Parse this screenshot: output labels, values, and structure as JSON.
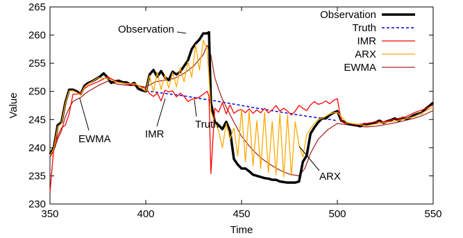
{
  "chart_data": {
    "type": "line",
    "xlabel": "Time",
    "ylabel": "Value",
    "xlim": [
      350,
      550
    ],
    "ylim": [
      230,
      265
    ],
    "xticks": [
      350,
      400,
      450,
      500,
      550
    ],
    "yticks": [
      230,
      235,
      240,
      245,
      250,
      255,
      260,
      265
    ],
    "grid": false,
    "legend_position": "top-right",
    "series": [
      {
        "name": "Observation",
        "color": "#000000",
        "style": "solid-thick",
        "x": [
          350,
          352,
          354,
          356,
          358,
          360,
          362,
          364,
          366,
          368,
          370,
          372,
          374,
          376,
          378,
          380,
          382,
          384,
          386,
          388,
          390,
          392,
          394,
          396,
          398,
          400,
          402,
          404,
          406,
          408,
          410,
          412,
          414,
          416,
          418,
          420,
          422,
          424,
          426,
          428,
          430,
          432,
          433,
          434,
          436,
          438,
          440,
          442,
          444,
          446,
          448,
          450,
          452,
          454,
          456,
          458,
          460,
          462,
          464,
          466,
          468,
          470,
          472,
          474,
          476,
          478,
          480,
          482,
          484,
          486,
          488,
          490,
          492,
          494,
          496,
          498,
          500,
          502,
          504,
          506,
          508,
          510,
          512,
          514,
          516,
          518,
          520,
          522,
          524,
          526,
          528,
          530,
          532,
          534,
          536,
          538,
          540,
          542,
          544,
          546,
          548,
          550
        ],
        "values": [
          238.8,
          240,
          244,
          244.5,
          248,
          250.3,
          250.3,
          250,
          249.5,
          251,
          251.5,
          251.8,
          252.2,
          252.6,
          253.2,
          252.5,
          251.5,
          251.8,
          251.9,
          251.6,
          251.6,
          251.2,
          251.5,
          250.5,
          250.2,
          250,
          253,
          253.8,
          252.6,
          253.6,
          252.5,
          252,
          253.5,
          253,
          253.5,
          254.5,
          255.5,
          257.5,
          258.5,
          259.2,
          260.3,
          260.3,
          260.5,
          248,
          244.6,
          244,
          243.3,
          244.6,
          243,
          238,
          237,
          236.3,
          236.3,
          235.8,
          235.2,
          235,
          234.8,
          234.6,
          234.5,
          234.3,
          234.3,
          234,
          233.9,
          233.8,
          233.8,
          233.8,
          234,
          237.5,
          238.6,
          242.5,
          243.6,
          244.5,
          245.2,
          245.2,
          245.8,
          246.2,
          246.5,
          244.8,
          244.5,
          244.2,
          244.1,
          244,
          243.8,
          244.2,
          244.1,
          244.3,
          244.5,
          244.8,
          244.4,
          244.7,
          244.9,
          245.2,
          244.8,
          245.3,
          245.1,
          245.4,
          245.8,
          246,
          246.2,
          246.9,
          247.4,
          248
        ]
      },
      {
        "name": "Truth",
        "color": "#0000dd",
        "style": "dashed",
        "x": [
          400,
          420,
          440,
          460,
          480,
          500
        ],
        "values": [
          250.1,
          249.2,
          248.1,
          246.9,
          245.8,
          244.8
        ]
      },
      {
        "name": "IMR",
        "color": "#ff0000",
        "style": "solid",
        "x": [
          350,
          352,
          354,
          356,
          358,
          360,
          362,
          364,
          366,
          368,
          370,
          375,
          380,
          385,
          390,
          395,
          400,
          402,
          404,
          406,
          408,
          410,
          412,
          414,
          416,
          418,
          420,
          422,
          424,
          426,
          428,
          430,
          432,
          433,
          434,
          436,
          438,
          440,
          442,
          444,
          446,
          448,
          450,
          452,
          454,
          456,
          458,
          460,
          462,
          464,
          466,
          468,
          470,
          472,
          474,
          476,
          478,
          480,
          482,
          484,
          486,
          488,
          490,
          492,
          494,
          496,
          498,
          500,
          502,
          504,
          506,
          508,
          510,
          515,
          520,
          525,
          530,
          535,
          540,
          545,
          550
        ],
        "values": [
          232,
          240,
          242,
          243.5,
          244,
          246,
          249.5,
          249.5,
          249.7,
          250.5,
          251,
          251.7,
          252.6,
          251.7,
          251.3,
          251.2,
          250.5,
          249.6,
          249.1,
          249.7,
          248.3,
          250.2,
          249.9,
          250.1,
          249,
          249.7,
          249.1,
          248.2,
          248.6,
          248.7,
          249,
          249.5,
          250,
          249.2,
          235.4,
          247,
          246.3,
          248,
          246,
          247.6,
          246.1,
          246.6,
          246.8,
          246.2,
          246.9,
          246.1,
          246.7,
          246.2,
          247,
          246.2,
          246.7,
          247.5,
          246.5,
          247,
          246.5,
          245.8,
          246.5,
          247.5,
          247,
          246.6,
          247.6,
          248.2,
          247.7,
          247.9,
          248.3,
          247.8,
          248.4,
          248.7,
          244.8,
          244.3,
          244.4,
          244.2,
          244.1,
          244.3,
          244.6,
          244.6,
          245.1,
          245.4,
          246.2,
          246.8,
          247.6
        ]
      },
      {
        "name": "ARX",
        "color": "#ffaa00",
        "style": "solid",
        "x": [
          350,
          352,
          354,
          356,
          358,
          360,
          362,
          364,
          366,
          368,
          370,
          375,
          380,
          385,
          390,
          395,
          400,
          402,
          404,
          406,
          408,
          410,
          412,
          414,
          416,
          418,
          420,
          422,
          424,
          426,
          428,
          430,
          432,
          433,
          434,
          436,
          438,
          440,
          442,
          444,
          446,
          448,
          450,
          452,
          454,
          456,
          458,
          460,
          462,
          464,
          466,
          468,
          470,
          472,
          474,
          476,
          478,
          480,
          482,
          484,
          486,
          488,
          490,
          492,
          494,
          496,
          498,
          500,
          505,
          510,
          515,
          520,
          525,
          530,
          535,
          540,
          545,
          550
        ],
        "values": [
          238.6,
          239.8,
          243.7,
          244.3,
          247.8,
          250.1,
          250.1,
          249.8,
          249.3,
          250.8,
          251.3,
          252.4,
          252.3,
          251.6,
          251.4,
          251.3,
          250,
          252.8,
          249.9,
          253.4,
          250.3,
          252.9,
          250.6,
          253.3,
          250.8,
          254.2,
          251.7,
          255.3,
          252.5,
          258.3,
          253.8,
          259.1,
          257.5,
          252.6,
          246.5,
          244.4,
          243,
          240,
          244.3,
          241.5,
          243.5,
          238.5,
          246.8,
          237.5,
          246.5,
          236.8,
          244.8,
          236.3,
          246.3,
          235.6,
          244.7,
          235.2,
          246.1,
          234.8,
          245.8,
          235,
          244.6,
          240.5,
          238.3,
          242.3,
          243.4,
          244.3,
          245,
          245.2,
          245.6,
          246,
          246.2,
          246.3,
          244.4,
          244.2,
          243.9,
          244.2,
          244.5,
          244.7,
          245.1,
          245.5,
          246.3,
          247.2
        ]
      },
      {
        "name": "EWMA",
        "color": "#a52a2a",
        "style": "solid",
        "x": [
          350,
          352,
          354,
          356,
          358,
          360,
          362,
          364,
          366,
          368,
          370,
          375,
          380,
          385,
          390,
          395,
          400,
          405,
          410,
          415,
          420,
          425,
          430,
          432,
          434,
          436,
          438,
          440,
          445,
          450,
          455,
          460,
          465,
          470,
          475,
          480,
          483,
          486,
          490,
          495,
          500,
          505,
          510,
          515,
          520,
          525,
          530,
          535,
          540,
          545,
          550
        ],
        "values": [
          238.3,
          239.5,
          241.5,
          243,
          245.5,
          247,
          248.2,
          248.6,
          248.9,
          249.5,
          250,
          251,
          251.8,
          251.3,
          251.1,
          251,
          250.8,
          251.7,
          252,
          252.3,
          253.2,
          254.5,
          256.5,
          258.2,
          256.4,
          252.5,
          250.4,
          248.6,
          245.2,
          242,
          239.9,
          238.2,
          237,
          236,
          235.3,
          235,
          236.3,
          239,
          241.5,
          243.2,
          244.3,
          244.1,
          243.8,
          243.7,
          243.8,
          244.1,
          244.4,
          244.8,
          245.2,
          245.8,
          246.6
        ]
      }
    ],
    "annotations": [
      {
        "text": "Observation",
        "x": 427,
        "y": 260
      },
      {
        "text": "IMR",
        "x": 409,
        "y": 248
      },
      {
        "text": "Truth",
        "x": 423,
        "y": 248.5
      },
      {
        "text": "EWMA",
        "x": 365,
        "y": 248
      },
      {
        "text": "ARX",
        "x": 478,
        "y": 238
      }
    ]
  }
}
